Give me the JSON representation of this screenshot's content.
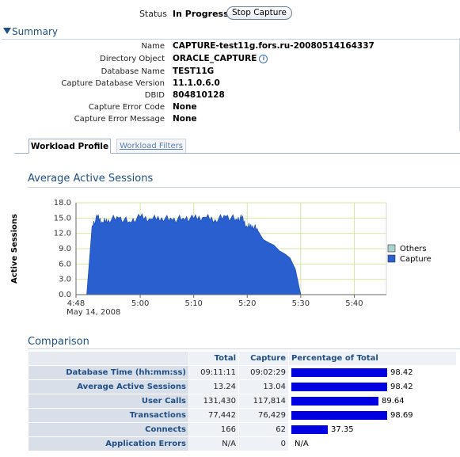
{
  "status": {
    "label": "Status",
    "value": "In Progress",
    "stop_button": "Stop Capture"
  },
  "summary": {
    "title": "Summary",
    "rows": [
      {
        "label": "Name",
        "value": "CAPTURE-test11g.fors.ru-20080514164337"
      },
      {
        "label": "Directory Object",
        "value": "ORACLE_CAPTURE"
      },
      {
        "label": "Database Name",
        "value": "TEST11G"
      },
      {
        "label": "Capture Database Version",
        "value": "11.1.0.6.0"
      },
      {
        "label": "DBID",
        "value": "804810128"
      },
      {
        "label": "Capture Error Code",
        "value": "None"
      },
      {
        "label": "Capture Error Message",
        "value": "None"
      }
    ],
    "info_icon": "info-icon"
  },
  "tabs": [
    {
      "label": "Workload Profile",
      "active": true
    },
    {
      "label": "Workload Filters",
      "active": false
    }
  ],
  "chart_title": "Average Active Sessions",
  "chart_data": {
    "type": "area",
    "title": "Average Active Sessions",
    "ylabel": "Active Sessions",
    "xlabel": "",
    "ylim": [
      0,
      18
    ],
    "yticks": [
      "0.0",
      "3.0",
      "6.0",
      "9.0",
      "12.0",
      "15.0",
      "18.0"
    ],
    "xticks": [
      "4:48",
      "5:00",
      "5:10",
      "5:20",
      "5:30",
      "5:40"
    ],
    "x_sublabel": "May 14, 2008",
    "x_minutes": [
      288,
      289,
      290,
      291,
      292,
      293,
      294,
      296,
      298,
      300,
      302,
      304,
      306,
      308,
      310,
      312,
      314,
      316,
      318,
      319,
      320,
      321,
      322,
      323,
      324,
      325,
      326,
      327,
      328,
      329,
      330
    ],
    "series": [
      {
        "name": "Others",
        "color": "#a8d3cf",
        "values": [
          0,
          0,
          0,
          0,
          0,
          0,
          0,
          0,
          0,
          0,
          0,
          0,
          0,
          0,
          0,
          0,
          0,
          0,
          0,
          0,
          0,
          0,
          0,
          0,
          0,
          0,
          0,
          0,
          0,
          0,
          0
        ]
      },
      {
        "name": "Capture",
        "color": "#2a5fd0",
        "values": [
          0,
          0,
          0,
          13.5,
          15.2,
          14.1,
          14.7,
          15.0,
          14.3,
          15.2,
          14.8,
          15.1,
          14.6,
          15.0,
          14.9,
          15.2,
          14.7,
          15.3,
          14.8,
          15.0,
          13.2,
          13.6,
          12.5,
          10.8,
          10.2,
          9.7,
          8.6,
          8.0,
          7.2,
          5.0,
          0
        ]
      }
    ],
    "legend": [
      "Others",
      "Capture"
    ],
    "legend_position": "right",
    "grid": true
  },
  "comparison": {
    "title": "Comparison",
    "headers": [
      "",
      "Total",
      "Capture",
      "Percentage of Total"
    ],
    "rows": [
      {
        "label": "Database Time (hh:mm:ss)",
        "total": "09:11:11",
        "capture": "09:02:29",
        "pct": 98.42,
        "pct_label": "98.42"
      },
      {
        "label": "Average Active Sessions",
        "total": "13.24",
        "capture": "13.04",
        "pct": 98.42,
        "pct_label": "98.42"
      },
      {
        "label": "User Calls",
        "total": "131,430",
        "capture": "117,814",
        "pct": 89.64,
        "pct_label": "89.64"
      },
      {
        "label": "Transactions",
        "total": "77,442",
        "capture": "76,429",
        "pct": 98.69,
        "pct_label": "98.69"
      },
      {
        "label": "Connects",
        "total": "166",
        "capture": "62",
        "pct": 37.35,
        "pct_label": "37.35"
      },
      {
        "label": "Application Errors",
        "total": "N/A",
        "capture": "0",
        "pct": null,
        "pct_label": "N/A"
      }
    ]
  },
  "colors": {
    "accent": "#1f4f86",
    "bar": "#0000e0",
    "capture_area": "#2a5fd0",
    "others_area": "#a8d3cf"
  }
}
